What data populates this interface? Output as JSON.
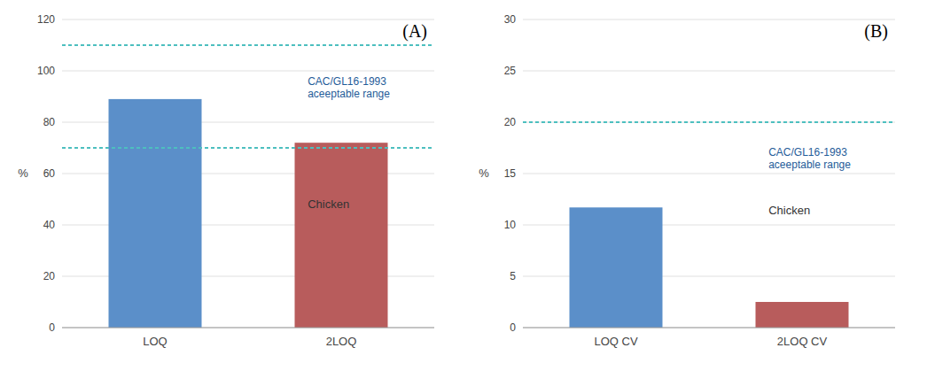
{
  "chart_data": [
    {
      "type": "bar",
      "title": "(A)",
      "y_label": "%",
      "categories": [
        "LOQ",
        "2LOQ"
      ],
      "values": [
        89,
        72
      ],
      "colors": [
        "#5B8FC9",
        "#B85C5C"
      ],
      "ylim": [
        0,
        120
      ],
      "yticks": [
        0,
        20,
        40,
        60,
        80,
        100,
        120
      ],
      "grid": true,
      "reference_lines": {
        "values": [
          110,
          70
        ],
        "color": "#4DBFBF",
        "line_style": "dotted"
      },
      "annotations": [
        {
          "text": "CAC/GL16-1993\naceeptable range",
          "color": "#1F5C99"
        },
        {
          "text": "Chicken"
        }
      ]
    },
    {
      "type": "bar",
      "title": "(B)",
      "y_label": "%",
      "categories": [
        "LOQ CV",
        "2LOQ CV"
      ],
      "values": [
        11.7,
        2.5
      ],
      "colors": [
        "#5B8FC9",
        "#B85C5C"
      ],
      "ylim": [
        0,
        30
      ],
      "yticks": [
        0,
        5,
        10,
        15,
        20,
        25,
        30
      ],
      "grid": true,
      "reference_lines": {
        "values": [
          20
        ],
        "color": "#4DBFBF",
        "line_style": "dotted"
      },
      "annotations": [
        {
          "text": "CAC/GL16-1993\naceeptable range",
          "color": "#1F5C99"
        },
        {
          "text": "Chicken"
        }
      ]
    }
  ]
}
